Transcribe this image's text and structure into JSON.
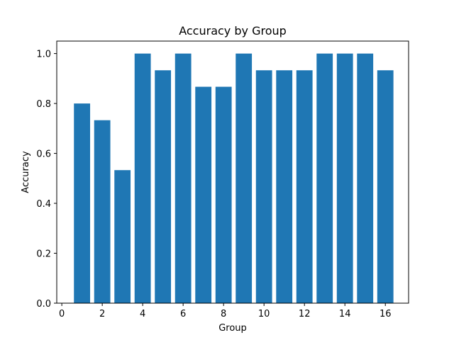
{
  "chart_data": {
    "type": "bar",
    "title": "Accuracy by Group",
    "xlabel": "Group",
    "ylabel": "Accuracy",
    "x": [
      1,
      2,
      3,
      4,
      5,
      6,
      7,
      8,
      9,
      10,
      11,
      12,
      13,
      14,
      15,
      16
    ],
    "values": [
      0.8,
      0.733,
      0.533,
      1.0,
      0.933,
      1.0,
      0.867,
      0.867,
      1.0,
      0.933,
      0.933,
      0.933,
      1.0,
      1.0,
      1.0,
      0.933
    ],
    "xlim": [
      -0.25,
      17.15
    ],
    "ylim": [
      0,
      1.05
    ],
    "xticks": [
      0,
      2,
      4,
      6,
      8,
      10,
      12,
      14,
      16
    ],
    "yticks": [
      0.0,
      0.2,
      0.4,
      0.6,
      0.8,
      1.0
    ],
    "ytick_labels": [
      "0.0",
      "0.2",
      "0.4",
      "0.6",
      "0.8",
      "1.0"
    ],
    "bar_color": "#1f77b4",
    "grid": false,
    "legend": "none"
  }
}
